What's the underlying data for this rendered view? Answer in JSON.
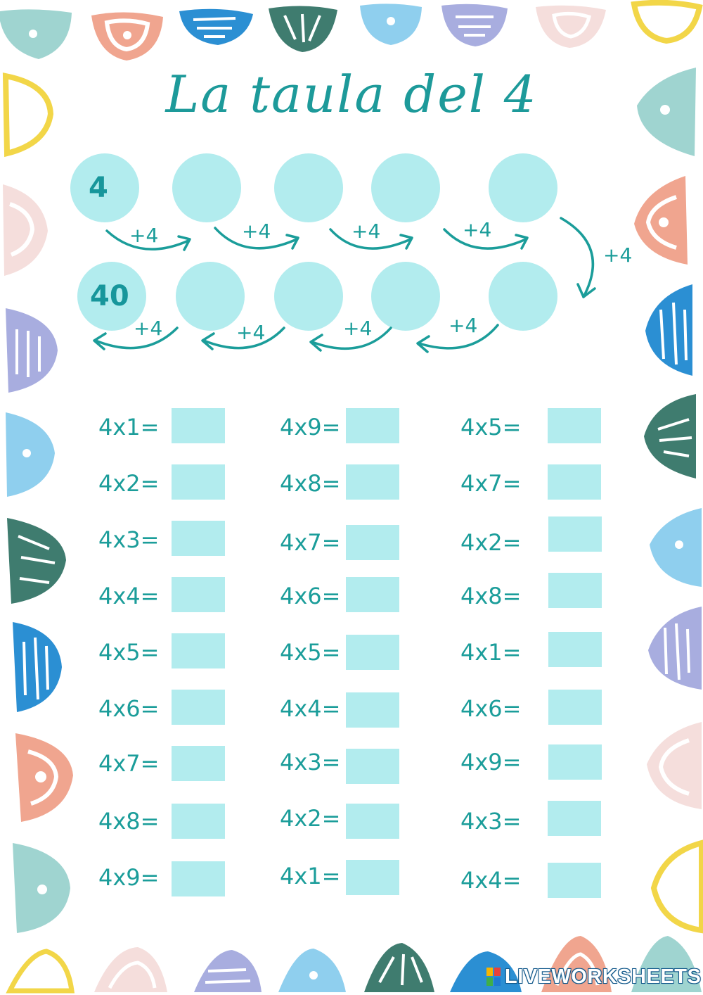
{
  "title": "La taula del 4",
  "sequence": {
    "top_row": [
      {
        "value": "4",
        "given": true
      },
      {
        "value": "",
        "given": false
      },
      {
        "value": "",
        "given": false
      },
      {
        "value": "",
        "given": false
      },
      {
        "value": "",
        "given": false
      }
    ],
    "bottom_row": [
      {
        "value": "40",
        "given": true
      },
      {
        "value": "",
        "given": false
      },
      {
        "value": "",
        "given": false
      },
      {
        "value": "",
        "given": false
      },
      {
        "value": "",
        "given": false
      }
    ],
    "step_label": "+4"
  },
  "exercises": {
    "column_1": [
      "4x1=",
      "4x2=",
      "4x3=",
      "4x4=",
      "4x5=",
      "4x6=",
      "4x7=",
      "4x8=",
      "4x9="
    ],
    "column_2": [
      "4x9=",
      "4x8=",
      "4x7=",
      "4x6=",
      "4x5=",
      "4x4=",
      "4x3=",
      "4x2=",
      "4x1="
    ],
    "column_3": [
      "4x5=",
      "4x7=",
      "4x2=",
      "4x8=",
      "4x1=",
      "4x6=",
      "4x9=",
      "4x3=",
      "4x4="
    ]
  },
  "branding": {
    "text": "LIVEWORKSHEETS",
    "logo_colors": [
      "#f7b500",
      "#e8423a",
      "#3fae49",
      "#1f7ad1"
    ]
  },
  "colors": {
    "teal_text": "#1b9d9a",
    "circle_fill": "#b2ecee",
    "box_fill": "#b2ecee"
  },
  "decorations": {
    "palette": [
      "#9fd4d0",
      "#f0a58f",
      "#2b8fd3",
      "#3f7c6f",
      "#8fcfee",
      "#a8addf",
      "#f5dedc",
      "#f2d648"
    ],
    "icons": [
      "semicircle-frame-shapes"
    ]
  }
}
